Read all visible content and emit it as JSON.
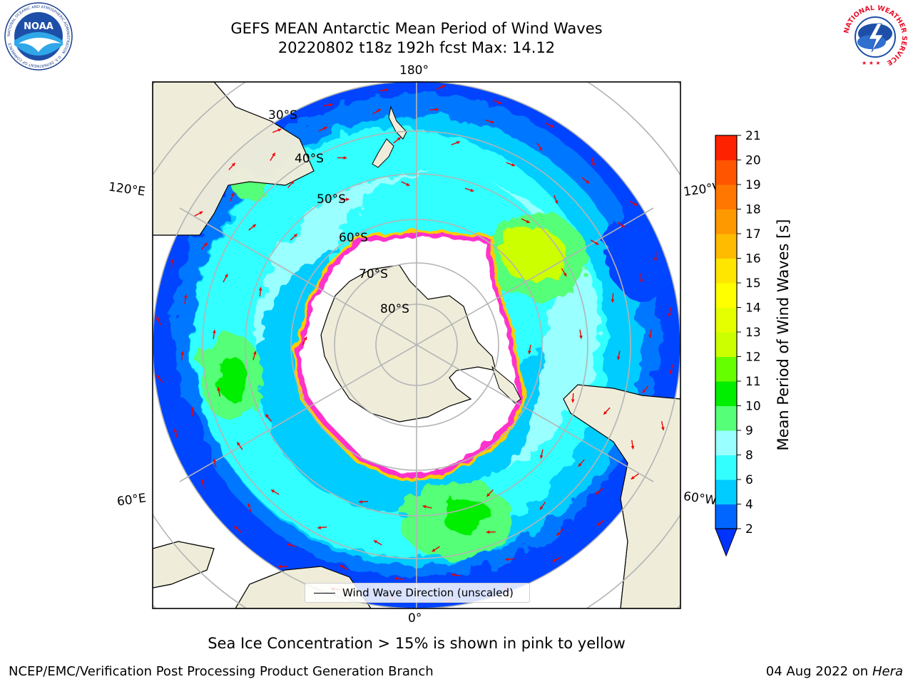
{
  "title": {
    "line1": "GEFS MEAN Antarctic Mean Period of Wind Waves",
    "line2": "20220802 t18z 192h fcst   Max: 14.12"
  },
  "logos": {
    "noaa_text": "NOAA",
    "noaa_ring_text": "NATIONAL OCEANIC AND ATMOSPHERIC ADMINISTRATION · U.S. DEPARTMENT OF COMMERCE",
    "nws_ring_text": "NATIONAL WEATHER SERVICE"
  },
  "map": {
    "projection": "south-polar-stereographic",
    "longitude_labels": {
      "top": "180°",
      "bottom": "0°",
      "upper_left": "120°E",
      "lower_left": "60°E",
      "upper_right": "120°W",
      "lower_right": "60°W"
    },
    "latitude_labels": [
      "30°S",
      "40°S",
      "50°S",
      "60°S",
      "70°S",
      "80°S"
    ],
    "colors": {
      "land": "#efedda",
      "sea_ice_interior": "#ffffff",
      "ice_edge": "#ff33cc",
      "ice_edge_outer": "#ffcc00",
      "arrows": "#ee0000",
      "grid": "#b4b4b4"
    }
  },
  "legend": {
    "label": "Wind Wave Direction (unscaled)"
  },
  "colorbar": {
    "label": "Mean Period of Wind Waves [s]",
    "ticks": [
      "2",
      "4",
      "6",
      "8",
      "9",
      "10",
      "11",
      "12",
      "13",
      "14",
      "15",
      "16",
      "17",
      "18",
      "19",
      "20",
      "21"
    ],
    "colors": [
      "#0066ff",
      "#00ccff",
      "#33ffff",
      "#99ffff",
      "#55ff77",
      "#00ee00",
      "#66ff00",
      "#ccff00",
      "#e6ff00",
      "#ffff00",
      "#ffe600",
      "#ffbb00",
      "#ff9900",
      "#ff7700",
      "#ff5500",
      "#ff2200"
    ],
    "extend_color": "#0033ff"
  },
  "notes": {
    "sea_ice": "Sea Ice Concentration > 15% is shown in pink to yellow"
  },
  "footer": {
    "left": "NCEP/EMC/Verification Post Processing Product Generation Branch",
    "right_date": "04 Aug 2022 on",
    "right_machine": "Hera"
  }
}
